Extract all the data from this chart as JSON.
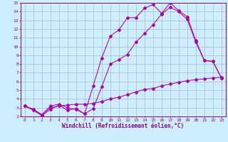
{
  "xlabel": "Windchill (Refroidissement éolien,°C)",
  "bg_color": "#cceeff",
  "line_color": "#aa00aa",
  "grid_color": "#aabbcc",
  "xlim": [
    -0.5,
    23.5
  ],
  "ylim": [
    2,
    15
  ],
  "xticks": [
    0,
    1,
    2,
    3,
    4,
    5,
    6,
    7,
    8,
    9,
    10,
    11,
    12,
    13,
    14,
    15,
    16,
    17,
    18,
    19,
    20,
    21,
    22,
    23
  ],
  "yticks": [
    2,
    3,
    4,
    5,
    6,
    7,
    8,
    9,
    10,
    11,
    12,
    13,
    14,
    15
  ],
  "line1_x": [
    0,
    1,
    2,
    3,
    4,
    5,
    6,
    7,
    8,
    9,
    10,
    11,
    12,
    13,
    14,
    15,
    16,
    17,
    18,
    19,
    20,
    21,
    22,
    23
  ],
  "line1_y": [
    3.2,
    2.8,
    2.2,
    3.2,
    3.4,
    3.0,
    2.8,
    2.3,
    5.5,
    8.7,
    11.2,
    11.9,
    13.3,
    13.3,
    14.4,
    14.8,
    13.8,
    15.0,
    14.1,
    13.4,
    10.7,
    8.4,
    8.3,
    6.4
  ],
  "line2_x": [
    0,
    1,
    2,
    3,
    4,
    5,
    6,
    7,
    8,
    9,
    10,
    11,
    12,
    13,
    14,
    15,
    16,
    17,
    18,
    19,
    20,
    21,
    22,
    23
  ],
  "line2_y": [
    3.2,
    2.7,
    2.1,
    2.8,
    3.3,
    2.7,
    2.9,
    2.3,
    2.9,
    5.4,
    8.0,
    8.5,
    9.1,
    10.5,
    11.5,
    12.5,
    13.7,
    14.5,
    14.0,
    13.1,
    10.5,
    8.4,
    8.3,
    6.4
  ],
  "line3_x": [
    0,
    1,
    2,
    3,
    4,
    5,
    6,
    7,
    8,
    9,
    10,
    11,
    12,
    13,
    14,
    15,
    16,
    17,
    18,
    19,
    20,
    21,
    22,
    23
  ],
  "line3_y": [
    3.2,
    2.8,
    2.2,
    3.0,
    3.2,
    3.3,
    3.4,
    3.4,
    3.5,
    3.7,
    4.0,
    4.2,
    4.5,
    4.8,
    5.1,
    5.2,
    5.5,
    5.7,
    5.9,
    6.1,
    6.2,
    6.3,
    6.4,
    6.5
  ]
}
